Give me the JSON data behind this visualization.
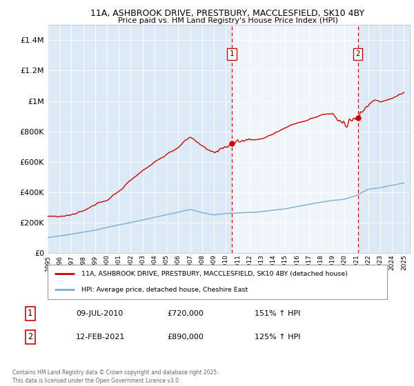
{
  "title_line1": "11A, ASHBROOK DRIVE, PRESTBURY, MACCLESFIELD, SK10 4BY",
  "title_line2": "Price paid vs. HM Land Registry's House Price Index (HPI)",
  "bg_color": "#dce9f7",
  "shade_color": "#dce9f7",
  "red_color": "#cc0000",
  "blue_color": "#7aadcf",
  "ylim": [
    0,
    1500000
  ],
  "xlim_start": 1995.0,
  "xlim_end": 2025.5,
  "marker1_x": 2010.52,
  "marker1_y": 720000,
  "marker2_x": 2021.12,
  "marker2_y": 890000,
  "legend_red_label": "11A, ASHBROOK DRIVE, PRESTBURY, MACCLESFIELD, SK10 4BY (detached house)",
  "legend_blue_label": "HPI: Average price, detached house, Cheshire East",
  "annotation1_date": "09-JUL-2010",
  "annotation1_price": "£720,000",
  "annotation1_hpi": "151% ↑ HPI",
  "annotation2_date": "12-FEB-2021",
  "annotation2_price": "£890,000",
  "annotation2_hpi": "125% ↑ HPI",
  "footnote": "Contains HM Land Registry data © Crown copyright and database right 2025.\nThis data is licensed under the Open Government Licence v3.0.",
  "yticks": [
    0,
    200000,
    400000,
    600000,
    800000,
    1000000,
    1200000,
    1400000
  ],
  "ytick_labels": [
    "£0",
    "£200K",
    "£400K",
    "£600K",
    "£800K",
    "£1M",
    "£1.2M",
    "£1.4M"
  ]
}
